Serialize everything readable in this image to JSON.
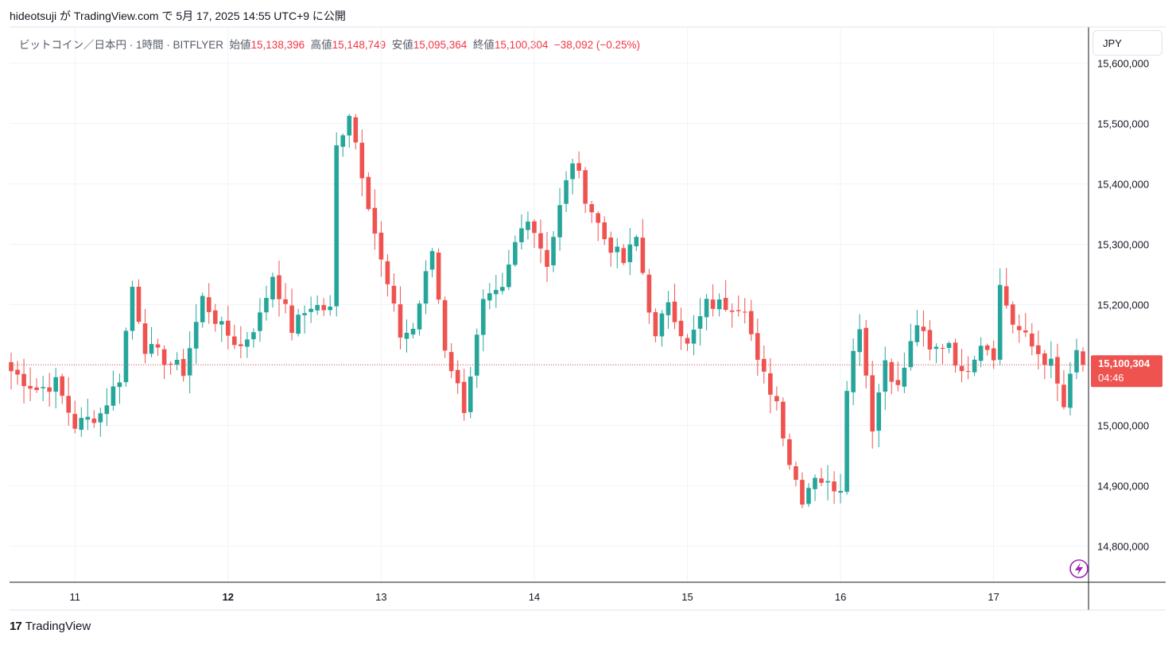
{
  "header": {
    "publisher": "hideotsuji",
    "publish_text": "hideotsuji が TradingView.com で 5月 17, 2025 14:55 UTC+9 に公開"
  },
  "legend": {
    "symbol": "ビットコイン／日本円 · 1時間 · BITFLYER",
    "open_label": "始値",
    "open": "15,138,396",
    "high_label": "高値",
    "high": "15,148,749",
    "low_label": "安値",
    "low": "15,095,364",
    "close_label": "終値",
    "close": "15,100,304",
    "change": "−38,092 (−0.25%)"
  },
  "currency_button": "JPY",
  "price_tag": {
    "price": "15,100,304",
    "countdown": "04:46"
  },
  "footer": {
    "logo": "17",
    "brand": "TradingView"
  },
  "colors": {
    "up": "#26a69a",
    "down": "#ef5350",
    "grid": "#f0f3fa",
    "axis": "#131722"
  },
  "chart_data": {
    "type": "candlestick",
    "interval": "1h",
    "y_ticks": [
      14800000,
      14900000,
      15000000,
      15100000,
      15200000,
      15300000,
      15400000,
      15500000,
      15600000
    ],
    "y_tick_labels": [
      "14,800,000",
      "14,900,000",
      "15,000,000",
      "15,100,000",
      "15,200,000",
      "15,300,000",
      "15,400,000",
      "15,500,000",
      "15,600,000"
    ],
    "ylim": [
      14740000,
      15660000
    ],
    "x_ticks": [
      {
        "label": "11",
        "index": 10,
        "bold": false
      },
      {
        "label": "12",
        "index": 34,
        "bold": true
      },
      {
        "label": "13",
        "index": 58,
        "bold": false
      },
      {
        "label": "14",
        "index": 82,
        "bold": false
      },
      {
        "label": "15",
        "index": 106,
        "bold": false
      },
      {
        "label": "16",
        "index": 130,
        "bold": false
      },
      {
        "label": "17",
        "index": 154,
        "bold": false
      }
    ],
    "last_close": 15100304,
    "pivots": [
      [
        0,
        15090000
      ],
      [
        4,
        15060000
      ],
      [
        7,
        15070000
      ],
      [
        10,
        15000000
      ],
      [
        14,
        15020000
      ],
      [
        17,
        15080000
      ],
      [
        19,
        15230000
      ],
      [
        21,
        15130000
      ],
      [
        24,
        15110000
      ],
      [
        27,
        15090000
      ],
      [
        30,
        15210000
      ],
      [
        33,
        15160000
      ],
      [
        36,
        15130000
      ],
      [
        39,
        15180000
      ],
      [
        41,
        15250000
      ],
      [
        44,
        15160000
      ],
      [
        47,
        15200000
      ],
      [
        50,
        15190000
      ],
      [
        51,
        15460000
      ],
      [
        53,
        15520000
      ],
      [
        55,
        15420000
      ],
      [
        58,
        15270000
      ],
      [
        61,
        15150000
      ],
      [
        63,
        15160000
      ],
      [
        66,
        15290000
      ],
      [
        68,
        15130000
      ],
      [
        71,
        15030000
      ],
      [
        74,
        15200000
      ],
      [
        77,
        15220000
      ],
      [
        79,
        15300000
      ],
      [
        81,
        15350000
      ],
      [
        84,
        15270000
      ],
      [
        86,
        15360000
      ],
      [
        88,
        15440000
      ],
      [
        90,
        15380000
      ],
      [
        93,
        15310000
      ],
      [
        96,
        15270000
      ],
      [
        98,
        15310000
      ],
      [
        101,
        15140000
      ],
      [
        103,
        15210000
      ],
      [
        106,
        15130000
      ],
      [
        109,
        15200000
      ],
      [
        112,
        15200000
      ],
      [
        115,
        15200000
      ],
      [
        117,
        15100000
      ],
      [
        120,
        15040000
      ],
      [
        122,
        14940000
      ],
      [
        124,
        14880000
      ],
      [
        126,
        14920000
      ],
      [
        128,
        14900000
      ],
      [
        130,
        14900000
      ],
      [
        131,
        15070000
      ],
      [
        133,
        15170000
      ],
      [
        135,
        15000000
      ],
      [
        137,
        15110000
      ],
      [
        139,
        15060000
      ],
      [
        142,
        15170000
      ],
      [
        144,
        15120000
      ],
      [
        147,
        15140000
      ],
      [
        149,
        15080000
      ],
      [
        152,
        15140000
      ],
      [
        154,
        15120000
      ],
      [
        155,
        15230000
      ],
      [
        157,
        15170000
      ],
      [
        160,
        15130000
      ],
      [
        163,
        15100000
      ],
      [
        165,
        15030000
      ],
      [
        167,
        15120000
      ],
      [
        168,
        15100000
      ]
    ]
  }
}
